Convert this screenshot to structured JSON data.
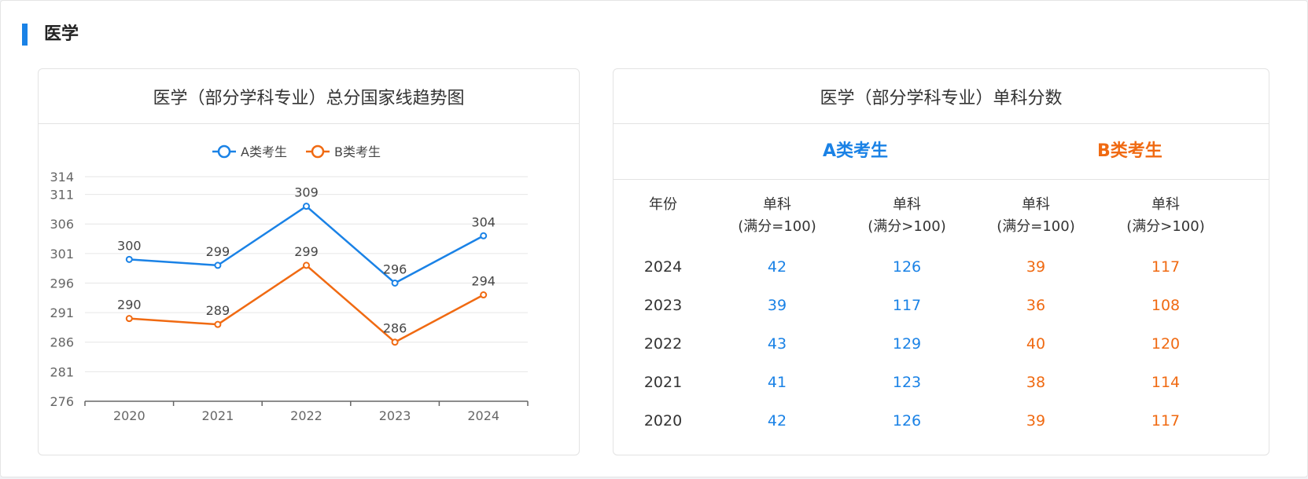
{
  "section": {
    "title": "医学"
  },
  "chart_card": {
    "title": "医学（部分学科专业）总分国家线趋势图"
  },
  "chart_data": {
    "type": "line",
    "title": "医学（部分学科专业）总分国家线趋势图",
    "categories": [
      "2020",
      "2021",
      "2022",
      "2023",
      "2024"
    ],
    "series": [
      {
        "name": "A类考生",
        "values": [
          300,
          299,
          309,
          296,
          304
        ],
        "color": "#1a82e6"
      },
      {
        "name": "B类考生",
        "values": [
          290,
          289,
          299,
          286,
          294
        ],
        "color": "#f06a12"
      }
    ],
    "yticks": [
      276,
      281,
      286,
      291,
      296,
      301,
      306,
      311,
      314
    ],
    "ylim": [
      276,
      314
    ],
    "xlabel": "",
    "ylabel": "",
    "grid": true,
    "legend_position": "top-center",
    "data_labels": true
  },
  "table_card": {
    "title": "医学（部分学科专业）单科分数",
    "group_a": "A类考生",
    "group_b": "B类考生",
    "headers": [
      {
        "line1": "年份",
        "line2": ""
      },
      {
        "line1": "单科",
        "line2": "(满分=100)"
      },
      {
        "line1": "单科",
        "line2": "(满分>100)"
      },
      {
        "line1": "单科",
        "line2": "(满分=100)"
      },
      {
        "line1": "单科",
        "line2": "(满分>100)"
      }
    ],
    "rows": [
      [
        "2024",
        "42",
        "126",
        "39",
        "117"
      ],
      [
        "2023",
        "39",
        "117",
        "36",
        "108"
      ],
      [
        "2022",
        "43",
        "129",
        "40",
        "120"
      ],
      [
        "2021",
        "41",
        "123",
        "38",
        "114"
      ],
      [
        "2020",
        "42",
        "126",
        "39",
        "117"
      ]
    ]
  },
  "colors": {
    "accent": "#1a82e6",
    "group_a": "#1a82e6",
    "group_b": "#f06a12"
  }
}
